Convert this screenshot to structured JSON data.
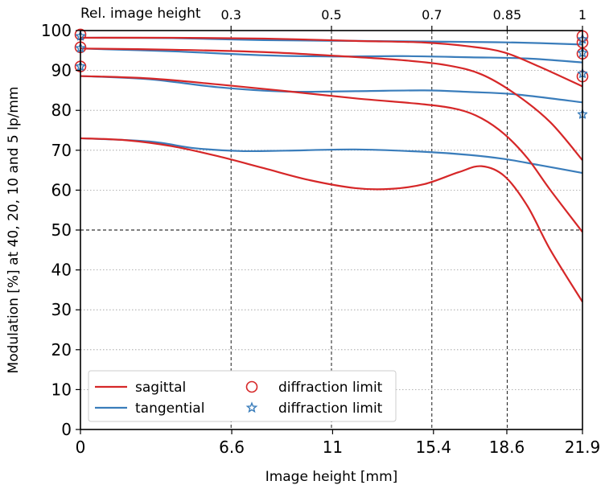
{
  "chart_data": {
    "type": "line",
    "title": "",
    "xlabel": "Image height [mm]",
    "ylabel": "Modulation [%] at 40, 20, 10 and 5 lp/mm",
    "top_axis_label": "Rel. image height",
    "xlim": [
      0,
      21.9
    ],
    "ylim": [
      0,
      100
    ],
    "x_ticks": [
      0,
      6.6,
      11,
      15.4,
      18.6,
      21.9
    ],
    "x_tick_labels": [
      "0",
      "6.6",
      "11",
      "15.4",
      "18.6",
      "21.9"
    ],
    "y_ticks": [
      0,
      10,
      20,
      30,
      40,
      50,
      60,
      70,
      80,
      90,
      100
    ],
    "y_tick_labels": [
      "0",
      "10",
      "20",
      "30",
      "40",
      "50",
      "60",
      "70",
      "80",
      "90",
      "100"
    ],
    "top_ticks": [
      6.57,
      10.95,
      15.33,
      18.615,
      21.9
    ],
    "top_tick_labels": [
      "0.3",
      "0.5",
      "0.7",
      "0.85",
      "1"
    ],
    "dashed_vlines": [
      6.57,
      10.95,
      15.33,
      18.615,
      21.9
    ],
    "dashed_hline": 50,
    "grid": "horizontal dotted",
    "legend_position": "bottom-left",
    "legend": [
      {
        "label": "sagittal",
        "kind": "line",
        "color": "#d62728"
      },
      {
        "label": "tangential",
        "kind": "line",
        "color": "#3a7dbb"
      },
      {
        "label": "diffraction limit",
        "kind": "circle",
        "color": "#d62728"
      },
      {
        "label": "diffraction limit",
        "kind": "star",
        "color": "#3a7dbb"
      }
    ],
    "series": [
      {
        "group": "sagittal",
        "color": "#d62728",
        "x": [
          0,
          4,
          8,
          12,
          15,
          17,
          18.5,
          20,
          21.9
        ],
        "y": [
          98.2,
          98.2,
          98,
          97.4,
          97,
          96,
          94.5,
          91,
          86
        ]
      },
      {
        "group": "sagittal",
        "color": "#d62728",
        "x": [
          0,
          4,
          8,
          11,
          14,
          16,
          17.5,
          19,
          20.5,
          21.9
        ],
        "y": [
          95.5,
          95.2,
          94.6,
          93.7,
          92.6,
          91.3,
          89,
          84,
          77,
          67.5
        ]
      },
      {
        "group": "sagittal",
        "color": "#d62728",
        "x": [
          0,
          3,
          6,
          9,
          12,
          15,
          16.5,
          17.5,
          18.5,
          19.5,
          20.5,
          21.9
        ],
        "y": [
          88.6,
          88,
          86.5,
          84.8,
          83,
          81.5,
          80.2,
          78,
          74,
          68,
          60,
          49.5
        ]
      },
      {
        "group": "sagittal",
        "color": "#d62728",
        "x": [
          0,
          2,
          4,
          6,
          8,
          10,
          12,
          13.5,
          15,
          16.5,
          17.5,
          18.5,
          19.5,
          20.5,
          21.9
        ],
        "y": [
          73,
          72.5,
          71,
          68.5,
          65.5,
          62.5,
          60.5,
          60.3,
          61.5,
          64.5,
          66,
          63.5,
          56,
          45,
          32
        ]
      },
      {
        "group": "tangential",
        "color": "#3a7dbb",
        "x": [
          0,
          4,
          8,
          12,
          16,
          19,
          21.9
        ],
        "y": [
          98.2,
          98.1,
          97.6,
          97.4,
          97.2,
          97,
          96.5
        ]
      },
      {
        "group": "tangential",
        "color": "#3a7dbb",
        "x": [
          0,
          4,
          8,
          11,
          14,
          17,
          19.5,
          21.9
        ],
        "y": [
          95.5,
          94.8,
          93.8,
          93.5,
          93.6,
          93.3,
          93,
          92
        ]
      },
      {
        "group": "tangential",
        "color": "#3a7dbb",
        "x": [
          0,
          3,
          6,
          9,
          12,
          15,
          17,
          19,
          21.9
        ],
        "y": [
          88.6,
          87.8,
          85.8,
          84.7,
          84.8,
          85,
          84.6,
          84,
          82
        ]
      },
      {
        "group": "tangential",
        "color": "#3a7dbb",
        "x": [
          0,
          3,
          5,
          7,
          9,
          12,
          15,
          17,
          18.5,
          20,
          21.9
        ],
        "y": [
          73,
          72.2,
          70.5,
          69.8,
          69.9,
          70.2,
          69.6,
          68.8,
          67.8,
          66.3,
          64.3
        ]
      }
    ],
    "diffraction_limit_markers": [
      {
        "kind": "circle",
        "color": "#d62728",
        "x": 0,
        "y": 99
      },
      {
        "kind": "circle",
        "color": "#d62728",
        "x": 0,
        "y": 95.8
      },
      {
        "kind": "circle",
        "color": "#d62728",
        "x": 0,
        "y": 91
      },
      {
        "kind": "circle",
        "color": "#d62728",
        "x": 21.9,
        "y": 98.6
      },
      {
        "kind": "circle",
        "color": "#d62728",
        "x": 21.9,
        "y": 97
      },
      {
        "kind": "circle",
        "color": "#d62728",
        "x": 21.9,
        "y": 94.2
      },
      {
        "kind": "circle",
        "color": "#d62728",
        "x": 21.9,
        "y": 88.5
      },
      {
        "kind": "star",
        "color": "#3a7dbb",
        "x": 0,
        "y": 98.6
      },
      {
        "kind": "star",
        "color": "#3a7dbb",
        "x": 0,
        "y": 95.6
      },
      {
        "kind": "star",
        "color": "#3a7dbb",
        "x": 0,
        "y": 91
      },
      {
        "kind": "star",
        "color": "#3a7dbb",
        "x": 21.9,
        "y": 97.8
      },
      {
        "kind": "star",
        "color": "#3a7dbb",
        "x": 21.9,
        "y": 94.4
      },
      {
        "kind": "star",
        "color": "#3a7dbb",
        "x": 21.9,
        "y": 89.2
      },
      {
        "kind": "star",
        "color": "#3a7dbb",
        "x": 21.9,
        "y": 79
      }
    ]
  }
}
